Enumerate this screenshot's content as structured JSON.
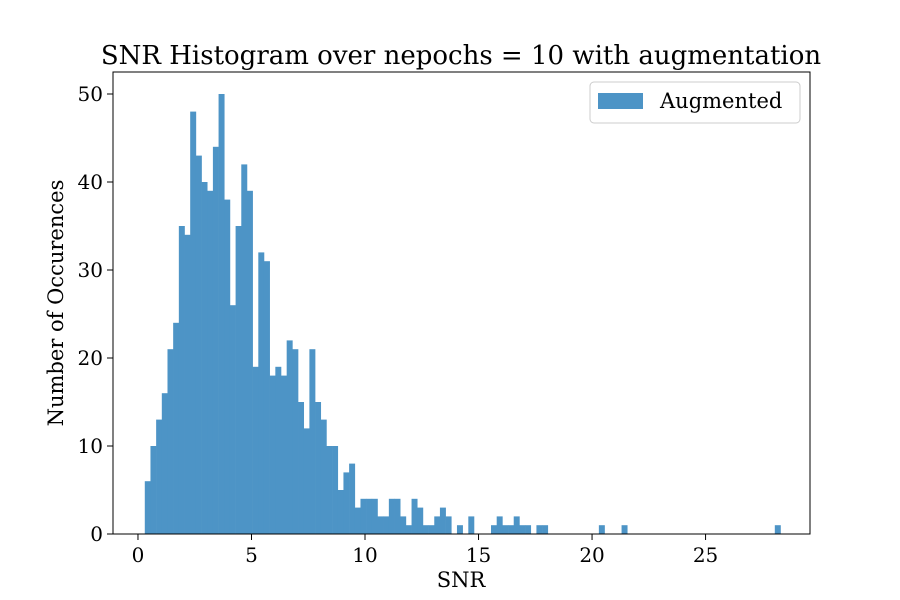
{
  "chart_data": {
    "type": "bar",
    "subtype": "histogram",
    "title": "SNR Histogram over nepochs = 10 with augmentation",
    "xlabel": "SNR",
    "ylabel": "Number of Occurences",
    "xlim": [
      -1.1,
      29.6
    ],
    "ylim": [
      0,
      52.5
    ],
    "xticks": [
      0,
      5,
      10,
      15,
      20,
      25
    ],
    "yticks": [
      0,
      10,
      20,
      30,
      40,
      50
    ],
    "grid": false,
    "legend_position": "top-right",
    "bin_width": 0.25,
    "bin_start": 0.3,
    "series": [
      {
        "name": "Augmented",
        "color": "#4d94c6",
        "values": [
          6,
          10,
          13,
          16,
          21,
          24,
          35,
          34,
          48,
          43,
          40,
          39,
          44,
          50,
          38,
          26,
          35,
          42,
          39,
          19,
          32,
          31,
          18,
          19,
          18,
          22,
          21,
          15,
          12,
          21,
          15,
          13,
          10,
          10,
          5,
          7,
          8,
          3,
          4,
          4,
          4,
          2,
          2,
          4,
          4,
          2,
          1,
          4,
          3,
          1,
          1,
          2,
          3,
          2,
          0,
          1,
          0,
          2,
          0,
          0,
          0,
          1,
          2,
          1,
          1,
          2,
          1,
          1,
          0,
          1,
          1,
          0,
          0,
          0,
          0,
          0,
          0,
          0,
          0,
          0,
          1,
          0,
          0,
          0,
          1,
          0,
          0,
          0,
          0,
          0,
          0,
          0,
          0,
          0,
          0,
          0,
          0,
          0,
          0,
          0,
          0,
          0,
          0,
          0,
          0,
          0,
          0,
          0,
          0,
          0,
          0,
          1
        ]
      }
    ]
  }
}
